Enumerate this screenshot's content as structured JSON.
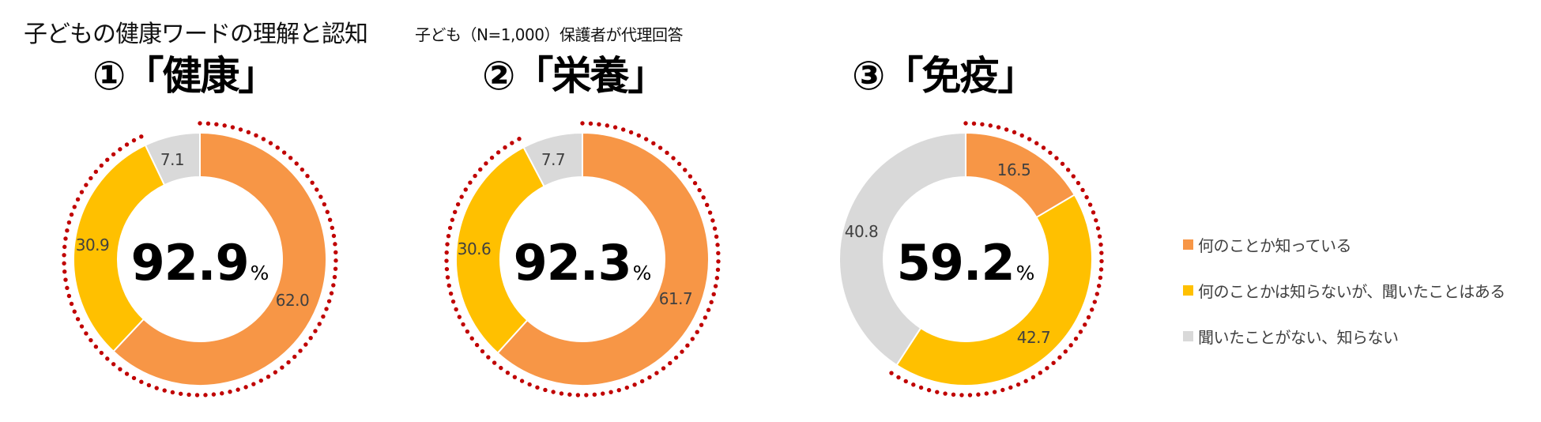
{
  "header": {
    "title": "子どもの健康ワードの理解と認知",
    "subtitle": "子ども（N=1,000）保護者が代理回答"
  },
  "colors": {
    "know": "#F79646",
    "heard": "#FFC000",
    "unknown": "#D9D9D9",
    "dots": "#C00000"
  },
  "legend": [
    {
      "key": "know",
      "label": "何のことか知っている",
      "color": "#F79646"
    },
    {
      "key": "heard",
      "label": "何のことかは知らないが、聞いたことはある",
      "color": "#FFC000"
    },
    {
      "key": "unknown",
      "label": "聞いたことがない、知らない",
      "color": "#D9D9D9"
    }
  ],
  "panels": [
    {
      "heading": "①「健康」",
      "center_value": "92.9",
      "center_unit": "%",
      "labels": {
        "know": "62.0",
        "heard": "30.9",
        "unknown": "7.1"
      }
    },
    {
      "heading": "②「栄養」",
      "center_value": "92.3",
      "center_unit": "%",
      "labels": {
        "know": "61.7",
        "heard": "30.6",
        "unknown": "7.7"
      }
    },
    {
      "heading": "③「免疫」",
      "center_value": "59.2",
      "center_unit": "%",
      "labels": {
        "know": "16.5",
        "heard": "42.7",
        "unknown": "40.8"
      }
    }
  ],
  "chart_data": [
    {
      "type": "pie",
      "variant": "donut",
      "title": "①「健康」",
      "categories": [
        "何のことか知っている",
        "何のことかは知らないが、聞いたことはある",
        "聞いたことがない、知らない"
      ],
      "values": [
        62.0,
        30.9,
        7.1
      ],
      "center_label": "92.9%",
      "highlight": "dotted arc around 知っている + 聞いたことはある (92.9%)"
    },
    {
      "type": "pie",
      "variant": "donut",
      "title": "②「栄養」",
      "categories": [
        "何のことか知っている",
        "何のことかは知らないが、聞いたことはある",
        "聞いたことがない、知らない"
      ],
      "values": [
        61.7,
        30.6,
        7.7
      ],
      "center_label": "92.3%",
      "highlight": "dotted arc around 知っている + 聞いたことはある (92.3%)"
    },
    {
      "type": "pie",
      "variant": "donut",
      "title": "③「免疫」",
      "categories": [
        "何のことか知っている",
        "何のことかは知らないが、聞いたことはある",
        "聞いたことがない、知らない"
      ],
      "values": [
        16.5,
        42.7,
        40.8
      ],
      "center_label": "59.2%",
      "highlight": "dotted arc around 知っている + 聞いたことはある (59.2%)"
    }
  ]
}
